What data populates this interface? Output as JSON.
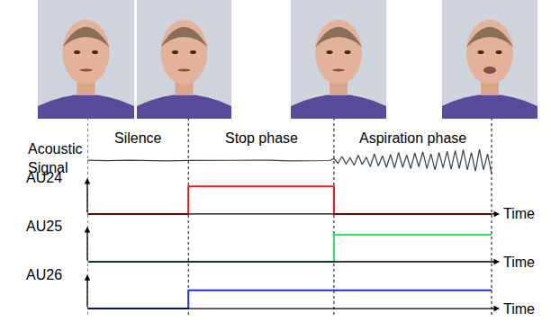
{
  "phases": [
    {
      "label": "Silence",
      "start": 0,
      "end": 0.25
    },
    {
      "label": "Stop phase",
      "start": 0.25,
      "end": 0.61
    },
    {
      "label": "Aspiration phase",
      "start": 0.61,
      "end": 1.0
    }
  ],
  "chart_data": [
    {
      "type": "line",
      "title": "Acoustic Signal",
      "x": [
        0,
        0.05,
        0.1,
        0.15,
        0.2,
        0.25,
        0.3,
        0.35,
        0.4,
        0.45,
        0.5,
        0.55,
        0.6,
        0.61,
        0.62,
        0.63,
        0.64,
        0.65,
        0.66,
        0.67,
        0.68,
        0.69,
        0.7,
        0.71,
        0.72,
        0.73,
        0.74,
        0.75,
        0.76,
        0.77,
        0.78,
        0.79,
        0.8,
        0.81,
        0.82,
        0.83,
        0.84,
        0.85,
        0.86,
        0.87,
        0.88,
        0.89,
        0.9,
        0.91,
        0.92,
        0.93,
        0.94,
        0.95,
        0.96,
        0.97,
        0.98,
        0.99,
        1.0
      ],
      "values": [
        0.02,
        -0.01,
        0.03,
        0.0,
        -0.02,
        0.01,
        0.02,
        -0.01,
        0.0,
        0.02,
        -0.02,
        0.01,
        0.0,
        0.15,
        -0.2,
        0.3,
        -0.25,
        0.2,
        -0.35,
        0.4,
        -0.3,
        0.25,
        -0.45,
        0.5,
        -0.4,
        0.35,
        -0.5,
        0.45,
        -0.55,
        0.6,
        -0.5,
        0.4,
        -0.6,
        0.55,
        -0.45,
        0.65,
        -0.6,
        0.5,
        -0.7,
        0.6,
        -0.55,
        0.7,
        -0.65,
        0.75,
        -0.6,
        0.8,
        -0.7,
        0.6,
        -0.8,
        0.85,
        -0.7,
        0.5,
        -1.0
      ],
      "color": "#34434d",
      "xlim": [
        0,
        1.02
      ],
      "ylim": [
        -1.1,
        1.1
      ],
      "tick_labels": false
    },
    {
      "type": "line",
      "title": "AU24",
      "xlabel": "Time",
      "x": [
        0,
        0.25,
        0.61,
        1.0
      ],
      "values": [
        0,
        1,
        0,
        0
      ],
      "color": "#e31a1c",
      "line_style": "step",
      "xlim": [
        0,
        1.02
      ],
      "ylim": [
        -0.1,
        1.3
      ],
      "tick_labels": false
    },
    {
      "type": "line",
      "title": "AU25",
      "xlabel": "Time",
      "x": [
        0,
        0.25,
        0.61,
        1.0
      ],
      "values": [
        0,
        0,
        1,
        1
      ],
      "color": "#33dd66",
      "line_style": "step",
      "xlim": [
        0,
        1.02
      ],
      "ylim": [
        -0.1,
        1.3
      ],
      "tick_labels": false
    },
    {
      "type": "line",
      "title": "AU26",
      "xlabel": "Time",
      "x": [
        0,
        0.25,
        0.61,
        1.0
      ],
      "values": [
        0,
        0.7,
        0.7,
        0.7
      ],
      "color": "#2233cc",
      "line_style": "step",
      "xlim": [
        0,
        1.02
      ],
      "ylim": [
        -0.1,
        1.3
      ],
      "tick_labels": false
    }
  ]
}
